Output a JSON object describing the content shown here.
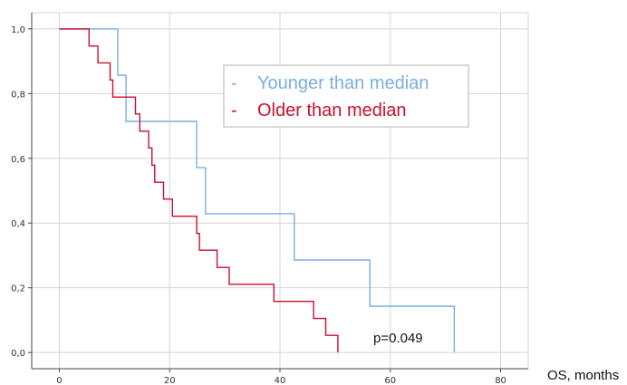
{
  "chart_data": {
    "type": "line",
    "step": true,
    "xlabel": "OS, months",
    "ylabel": "",
    "xlim": [
      -5,
      85
    ],
    "ylim": [
      -0.05,
      1.05
    ],
    "x_ticks": [
      "0",
      "20",
      "40",
      "60",
      "80"
    ],
    "y_ticks": [
      "1,0",
      "0,8",
      "0,6",
      "0,4",
      "0,2",
      "0,0"
    ],
    "grid": true,
    "legend_position": "top-right",
    "annotation": "p=0.049",
    "series": [
      {
        "name": "Younger than median",
        "color": "#7aaee3",
        "dash": "-",
        "points": [
          [
            0,
            1.0
          ],
          [
            10.6,
            1.0
          ],
          [
            10.6,
            0.857
          ],
          [
            12.1,
            0.857
          ],
          [
            12.1,
            0.714
          ],
          [
            24.9,
            0.714
          ],
          [
            24.9,
            0.571
          ],
          [
            26.5,
            0.571
          ],
          [
            26.5,
            0.429
          ],
          [
            42.6,
            0.429
          ],
          [
            42.6,
            0.286
          ],
          [
            56.3,
            0.286
          ],
          [
            56.3,
            0.143
          ],
          [
            71.6,
            0.143
          ],
          [
            71.6,
            0.0
          ]
        ]
      },
      {
        "name": "Older than median",
        "color": "#cc0f2e",
        "dash": "-",
        "points": [
          [
            0,
            1.0
          ],
          [
            5.4,
            1.0
          ],
          [
            5.4,
            0.947
          ],
          [
            7.0,
            0.947
          ],
          [
            7.0,
            0.895
          ],
          [
            9.2,
            0.895
          ],
          [
            9.2,
            0.842
          ],
          [
            9.7,
            0.842
          ],
          [
            9.7,
            0.789
          ],
          [
            13.8,
            0.789
          ],
          [
            13.8,
            0.737
          ],
          [
            14.6,
            0.737
          ],
          [
            14.6,
            0.684
          ],
          [
            16.2,
            0.684
          ],
          [
            16.2,
            0.632
          ],
          [
            16.8,
            0.632
          ],
          [
            16.8,
            0.579
          ],
          [
            17.3,
            0.579
          ],
          [
            17.3,
            0.526
          ],
          [
            18.9,
            0.526
          ],
          [
            18.9,
            0.474
          ],
          [
            20.5,
            0.474
          ],
          [
            20.5,
            0.421
          ],
          [
            24.9,
            0.421
          ],
          [
            24.9,
            0.368
          ],
          [
            25.4,
            0.368
          ],
          [
            25.4,
            0.316
          ],
          [
            28.6,
            0.316
          ],
          [
            28.6,
            0.263
          ],
          [
            30.8,
            0.263
          ],
          [
            30.8,
            0.211
          ],
          [
            38.9,
            0.211
          ],
          [
            38.9,
            0.158
          ],
          [
            46.1,
            0.158
          ],
          [
            46.1,
            0.105
          ],
          [
            48.3,
            0.105
          ],
          [
            48.3,
            0.053
          ],
          [
            50.5,
            0.053
          ],
          [
            50.5,
            0.0
          ]
        ]
      }
    ]
  }
}
